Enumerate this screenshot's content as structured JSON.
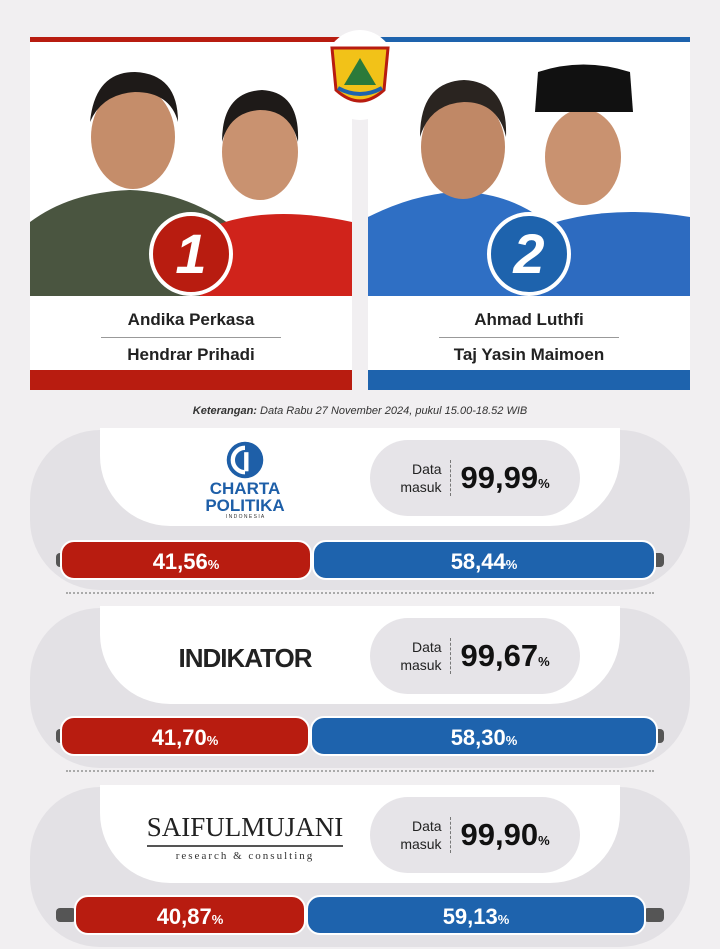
{
  "candidates": [
    {
      "number": "1",
      "name1": "Andika Perkasa",
      "name2": "Hendrar Prihadi",
      "color": "#b81c10"
    },
    {
      "number": "2",
      "name1": "Ahmad Luthfi",
      "name2": "Taj Yasin Maimoen",
      "color": "#1e63ad"
    }
  ],
  "note": {
    "label": "Keterangan:",
    "text": " Data Rabu 27 November 2024, pukul 15.00-18.52 WIB"
  },
  "polls": [
    {
      "logo_line1": "CHARTA",
      "logo_line2": "POLITIKA",
      "logo_line3": "I N D O N E S I A",
      "data_label1": "Data",
      "data_label2": "masuk",
      "data_in": "99,99",
      "pct": "%",
      "c1": "41,56",
      "c2": "58,44"
    },
    {
      "logo_line1": "INDIKATOR",
      "data_label1": "Data",
      "data_label2": "masuk",
      "data_in": "99,67",
      "pct": "%",
      "c1": "41,70",
      "c2": "58,30"
    },
    {
      "logo_line1": "SAIFULMUJANI",
      "logo_line2": "research & consulting",
      "data_label1": "Data",
      "data_label2": "masuk",
      "data_in": "99,90",
      "pct": "%",
      "c1": "40,87",
      "c2": "59,13"
    }
  ]
}
